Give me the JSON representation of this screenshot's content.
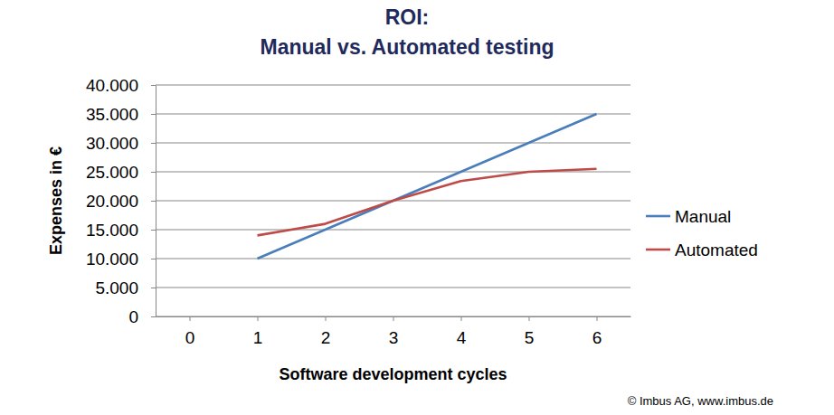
{
  "chart_data": {
    "type": "line",
    "title": [
      "ROI:",
      "Manual vs. Automated testing"
    ],
    "x_label": "Software development cycles",
    "y_label": "Expenses in €",
    "x": [
      1,
      2,
      3,
      4,
      5,
      6
    ],
    "xlim": [
      -0.5,
      6.5
    ],
    "xticks": [
      0,
      1,
      2,
      3,
      4,
      5,
      6
    ],
    "ylim": [
      0,
      40000
    ],
    "yticks": [
      0,
      {
        "value": 5000,
        "label": "5.000"
      },
      {
        "value": 10000,
        "label": "10.000"
      },
      {
        "value": 15000,
        "label": "15.000"
      },
      {
        "value": 20000,
        "label": "20.000"
      },
      {
        "value": 25000,
        "label": "25.000"
      },
      {
        "value": 30000,
        "label": "30.000"
      },
      {
        "value": 35000,
        "label": "35.000"
      },
      {
        "value": 40000,
        "label": "40.000"
      }
    ],
    "series": [
      {
        "name": "Manual",
        "color": "#4a7ebb",
        "values": [
          10000,
          15000,
          20000,
          25000,
          30000,
          35000
        ]
      },
      {
        "name": "Automated",
        "color": "#be4b48",
        "values": [
          14000,
          16000,
          20000,
          23400,
          25000,
          25500
        ]
      }
    ],
    "grid": true,
    "legend": "right",
    "annotations": [
      "© Imbus AG, www.imbus.de"
    ]
  }
}
